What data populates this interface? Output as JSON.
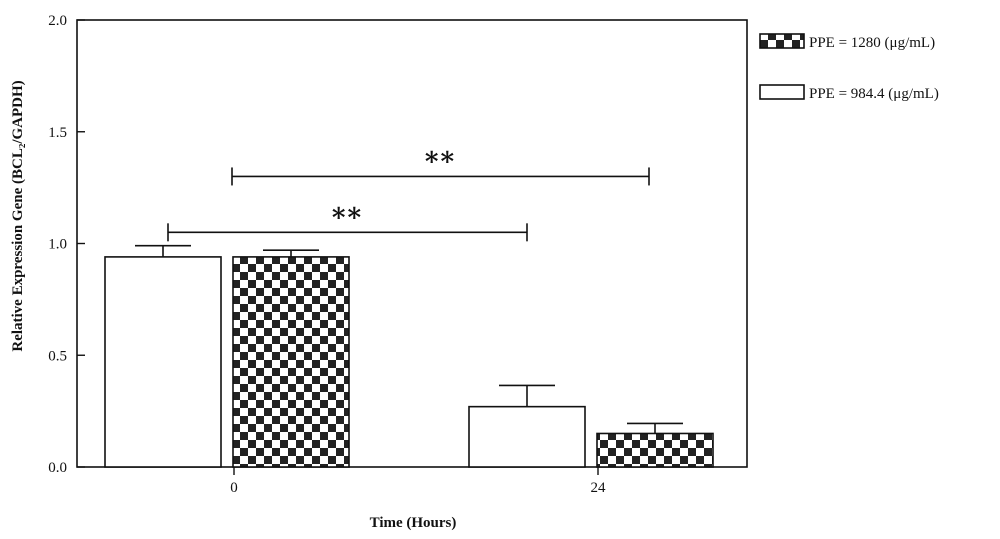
{
  "chart_data": {
    "type": "bar",
    "categories": [
      "0",
      "24"
    ],
    "xlabel": "Time (Hours)",
    "ylabel": "Relative Expression Gene (BCL₂/GAPDH)",
    "ylim": [
      0,
      2.0
    ],
    "yticks": [
      "0.0",
      "0.5",
      "1.0",
      "1.5",
      "2.0"
    ],
    "grid": false,
    "legend_position": "outside-right-top",
    "series": [
      {
        "name": "PPE = 984.4 (μg/mL)",
        "pattern": "white",
        "values": [
          0.94,
          0.27
        ],
        "errors": [
          0.05,
          0.095
        ]
      },
      {
        "name": "PPE = 1280 (μg/mL)",
        "pattern": "checkerboard",
        "values": [
          0.94,
          0.15
        ],
        "errors": [
          0.03,
          0.045
        ]
      }
    ],
    "significance": [
      {
        "label": "**",
        "from": "0 / PPE = 984.4 (μg/mL)",
        "to": "24 / PPE = 984.4 (μg/mL)",
        "y": 1.05
      },
      {
        "label": "**",
        "from": "0 / PPE = 1280 (μg/mL)",
        "to": "24 / PPE = 1280 (μg/mL)",
        "y": 1.3
      }
    ],
    "legend": [
      {
        "label": "PPE = 1280 (μg/mL)",
        "pattern": "checkerboard"
      },
      {
        "label": "PPE = 984.4 (μg/mL)",
        "pattern": "white"
      }
    ]
  },
  "colors": {
    "ink": "#111111",
    "fill_white": "#ffffff",
    "checker_dark": "#222222"
  }
}
